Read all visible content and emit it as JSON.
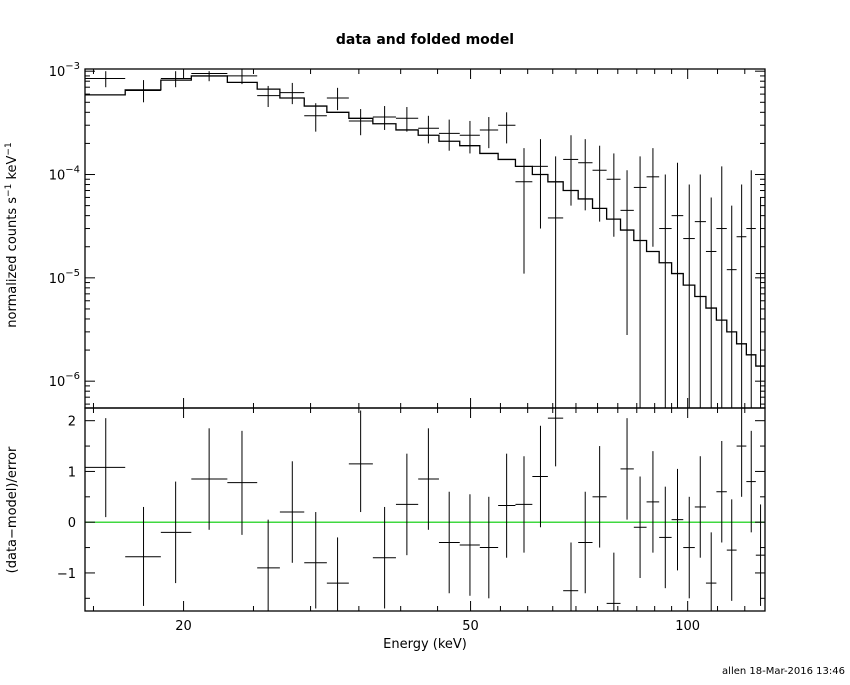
{
  "chart_data": {
    "type": "line",
    "title": "data and folded model",
    "footer": "allen 18-Mar-2016 13:46",
    "xlabel": "Energy (keV)",
    "xscale": "log",
    "xlim": [
      14.6,
      128
    ],
    "xticks": [
      {
        "value": 20,
        "label": "20"
      },
      {
        "value": 50,
        "label": "50"
      },
      {
        "value": 100,
        "label": "100"
      }
    ],
    "panels": [
      {
        "name": "spectrum",
        "ylabel_parts": [
          "normalized counts s",
          "−1",
          " keV",
          "−1"
        ],
        "yscale": "log",
        "ylim": [
          5.5e-07,
          0.00105
        ],
        "yticks": [
          {
            "value": 0.001,
            "base": "10",
            "exp": "−3"
          },
          {
            "value": 0.0001,
            "base": "10",
            "exp": "−4"
          },
          {
            "value": 1e-05,
            "base": "10",
            "exp": "−5"
          },
          {
            "value": 1e-06,
            "base": "10",
            "exp": "−6"
          }
        ],
        "model_step": {
          "edges": [
            14.6,
            16.6,
            18.6,
            20.5,
            23,
            25.3,
            27.2,
            29.4,
            31.6,
            33.9,
            36.6,
            39.4,
            42.3,
            45.2,
            48.3,
            51.5,
            54.6,
            57.7,
            60.9,
            64,
            67.2,
            70.5,
            73.8,
            77.2,
            80.7,
            84.2,
            87.7,
            91.3,
            95,
            98.6,
            102.3,
            106,
            109.6,
            113.3,
            116.9,
            120.6,
            124.3,
            128
          ],
          "values": [
            0.00059,
            0.00066,
            0.00082,
            0.0009,
            0.00078,
            0.00067,
            0.00055,
            0.00046,
            0.0004,
            0.00035,
            0.00031,
            0.00027,
            0.00024,
            0.00021,
            0.00019,
            0.00016,
            0.00014,
            0.00012,
            0.0001,
            8.5e-05,
            7e-05,
            5.8e-05,
            4.7e-05,
            3.7e-05,
            2.9e-05,
            2.3e-05,
            1.8e-05,
            1.4e-05,
            1.1e-05,
            8.5e-06,
            6.6e-06,
            5.1e-06,
            3.9e-06,
            3e-06,
            2.3e-06,
            1.8e-06,
            1.4e-06
          ]
        },
        "data_points": [
          {
            "x": 15.6,
            "xlo": 14.6,
            "xhi": 16.6,
            "y": 0.00085,
            "ylo": 0.0007,
            "yhi": 0.001
          },
          {
            "x": 17.6,
            "xlo": 16.6,
            "xhi": 18.6,
            "y": 0.00065,
            "ylo": 0.0005,
            "yhi": 0.00082
          },
          {
            "x": 19.5,
            "xlo": 18.6,
            "xhi": 20.5,
            "y": 0.00085,
            "ylo": 0.0007,
            "yhi": 0.001
          },
          {
            "x": 21.7,
            "xlo": 20.5,
            "xhi": 23,
            "y": 0.00095,
            "ylo": 0.0008,
            "yhi": 0.001
          },
          {
            "x": 24.1,
            "xlo": 23,
            "xhi": 25.3,
            "y": 0.0009,
            "ylo": 0.00075,
            "yhi": 0.00105
          },
          {
            "x": 26.2,
            "xlo": 25.3,
            "xhi": 27.2,
            "y": 0.00058,
            "ylo": 0.00045,
            "yhi": 0.00072
          },
          {
            "x": 28.3,
            "xlo": 27.2,
            "xhi": 29.4,
            "y": 0.00062,
            "ylo": 0.00048,
            "yhi": 0.00077
          },
          {
            "x": 30.5,
            "xlo": 29.4,
            "xhi": 31.6,
            "y": 0.00037,
            "ylo": 0.00026,
            "yhi": 0.00049
          },
          {
            "x": 32.7,
            "xlo": 31.6,
            "xhi": 33.9,
            "y": 0.00055,
            "ylo": 0.00042,
            "yhi": 0.00069
          },
          {
            "x": 35.2,
            "xlo": 33.9,
            "xhi": 36.6,
            "y": 0.00033,
            "ylo": 0.00024,
            "yhi": 0.00043
          },
          {
            "x": 38,
            "xlo": 36.6,
            "xhi": 39.4,
            "y": 0.00036,
            "ylo": 0.00027,
            "yhi": 0.00046
          },
          {
            "x": 40.8,
            "xlo": 39.4,
            "xhi": 42.3,
            "y": 0.00035,
            "ylo": 0.00026,
            "yhi": 0.00045
          },
          {
            "x": 43.7,
            "xlo": 42.3,
            "xhi": 45.2,
            "y": 0.00028,
            "ylo": 0.0002,
            "yhi": 0.00037
          },
          {
            "x": 46.7,
            "xlo": 45.2,
            "xhi": 48.3,
            "y": 0.00025,
            "ylo": 0.00017,
            "yhi": 0.00034
          },
          {
            "x": 49.9,
            "xlo": 48.3,
            "xhi": 51.5,
            "y": 0.00024,
            "ylo": 0.00016,
            "yhi": 0.00033
          },
          {
            "x": 53,
            "xlo": 51.5,
            "xhi": 54.6,
            "y": 0.00027,
            "ylo": 0.00018,
            "yhi": 0.00036
          },
          {
            "x": 56.1,
            "xlo": 54.6,
            "xhi": 57.7,
            "y": 0.0003,
            "ylo": 0.0002,
            "yhi": 0.0004
          },
          {
            "x": 59.3,
            "xlo": 57.7,
            "xhi": 60.9,
            "y": 8.5e-05,
            "ylo": 1.1e-05,
            "yhi": 0.00018
          },
          {
            "x": 62.5,
            "xlo": 60.9,
            "xhi": 64,
            "y": 0.00012,
            "ylo": 3e-05,
            "yhi": 0.00022
          },
          {
            "x": 65.6,
            "xlo": 64,
            "xhi": 67.2,
            "y": 3.8e-05,
            "ylo": 5.5e-07,
            "yhi": 0.00015
          },
          {
            "x": 68.9,
            "xlo": 67.2,
            "xhi": 70.5,
            "y": 0.00014,
            "ylo": 5e-05,
            "yhi": 0.00024
          },
          {
            "x": 72.1,
            "xlo": 70.5,
            "xhi": 73.8,
            "y": 0.00013,
            "ylo": 4.5e-05,
            "yhi": 0.00022
          },
          {
            "x": 75.5,
            "xlo": 73.8,
            "xhi": 77.2,
            "y": 0.00011,
            "ylo": 3.5e-05,
            "yhi": 0.00019
          },
          {
            "x": 79,
            "xlo": 77.2,
            "xhi": 80.7,
            "y": 9e-05,
            "ylo": 2.5e-05,
            "yhi": 0.00016
          },
          {
            "x": 82.4,
            "xlo": 80.7,
            "xhi": 84.2,
            "y": 4.5e-05,
            "ylo": 2.8e-06,
            "yhi": 0.00011
          },
          {
            "x": 85.9,
            "xlo": 84.2,
            "xhi": 87.7,
            "y": 7.5e-05,
            "ylo": 5.5e-07,
            "yhi": 0.00015
          },
          {
            "x": 89.5,
            "xlo": 87.7,
            "xhi": 91.3,
            "y": 9.5e-05,
            "ylo": 2e-05,
            "yhi": 0.00018
          },
          {
            "x": 93.1,
            "xlo": 91.3,
            "xhi": 95,
            "y": 3e-05,
            "ylo": 5.5e-07,
            "yhi": 0.0001
          },
          {
            "x": 96.8,
            "xlo": 95,
            "xhi": 98.6,
            "y": 4e-05,
            "ylo": 5.5e-07,
            "yhi": 0.00013
          },
          {
            "x": 100.5,
            "xlo": 98.6,
            "xhi": 102.3,
            "y": 2.4e-05,
            "ylo": 5.5e-07,
            "yhi": 8e-05
          },
          {
            "x": 104.1,
            "xlo": 102.3,
            "xhi": 106,
            "y": 3.5e-05,
            "ylo": 5.5e-07,
            "yhi": 0.0001
          },
          {
            "x": 107.8,
            "xlo": 106,
            "xhi": 109.6,
            "y": 1.8e-05,
            "ylo": 5.5e-07,
            "yhi": 6e-05
          },
          {
            "x": 111.5,
            "xlo": 109.6,
            "xhi": 113.3,
            "y": 3e-05,
            "ylo": 5.5e-07,
            "yhi": 0.00012
          },
          {
            "x": 115.1,
            "xlo": 113.3,
            "xhi": 116.9,
            "y": 1.2e-05,
            "ylo": 5.5e-07,
            "yhi": 5e-05
          },
          {
            "x": 118.8,
            "xlo": 116.9,
            "xhi": 120.6,
            "y": 2.5e-05,
            "ylo": 5.5e-07,
            "yhi": 8e-05
          },
          {
            "x": 122.5,
            "xlo": 120.6,
            "xhi": 124.3,
            "y": 3e-05,
            "ylo": 5.5e-07,
            "yhi": 0.00011
          },
          {
            "x": 126.2,
            "xlo": 124.3,
            "xhi": 128,
            "y": 1.1e-05,
            "ylo": 5.5e-07,
            "yhi": 6e-05
          }
        ]
      },
      {
        "name": "residuals",
        "ylabel": "(data−model)/error",
        "yscale": "linear",
        "ylim": [
          -1.75,
          2.25
        ],
        "yticks": [
          {
            "value": 2,
            "label": "2"
          },
          {
            "value": 1,
            "label": "1"
          },
          {
            "value": 0,
            "label": "0"
          },
          {
            "value": -1,
            "label": "−1"
          }
        ],
        "reference_line": {
          "y": 0,
          "color": "#00cc00"
        },
        "data_points": [
          {
            "x": 15.6,
            "xlo": 14.6,
            "xhi": 16.6,
            "y": 1.08,
            "ylo": 0.1,
            "yhi": 2.05
          },
          {
            "x": 17.6,
            "xlo": 16.6,
            "xhi": 18.6,
            "y": -0.68,
            "ylo": -1.65,
            "yhi": 0.3
          },
          {
            "x": 19.5,
            "xlo": 18.6,
            "xhi": 20.5,
            "y": -0.2,
            "ylo": -1.2,
            "yhi": 0.8
          },
          {
            "x": 21.7,
            "xlo": 20.5,
            "xhi": 23,
            "y": 0.85,
            "ylo": -0.15,
            "yhi": 1.85
          },
          {
            "x": 24.1,
            "xlo": 23,
            "xhi": 25.3,
            "y": 0.78,
            "ylo": -0.25,
            "yhi": 1.8
          },
          {
            "x": 26.2,
            "xlo": 25.3,
            "xhi": 27.2,
            "y": -0.9,
            "ylo": -1.75,
            "yhi": 0.05
          },
          {
            "x": 28.3,
            "xlo": 27.2,
            "xhi": 29.4,
            "y": 0.2,
            "ylo": -0.8,
            "yhi": 1.2
          },
          {
            "x": 30.5,
            "xlo": 29.4,
            "xhi": 31.6,
            "y": -0.8,
            "ylo": -1.7,
            "yhi": 0.2
          },
          {
            "x": 32.7,
            "xlo": 31.6,
            "xhi": 33.9,
            "y": -1.2,
            "ylo": -1.75,
            "yhi": -0.3
          },
          {
            "x": 35.2,
            "xlo": 33.9,
            "xhi": 36.6,
            "y": 1.15,
            "ylo": 0.2,
            "yhi": 2.2
          },
          {
            "x": 38,
            "xlo": 36.6,
            "xhi": 39.4,
            "y": -0.7,
            "ylo": -1.7,
            "yhi": 0.3
          },
          {
            "x": 40.8,
            "xlo": 39.4,
            "xhi": 42.3,
            "y": 0.35,
            "ylo": -0.65,
            "yhi": 1.35
          },
          {
            "x": 43.7,
            "xlo": 42.3,
            "xhi": 45.2,
            "y": 0.85,
            "ylo": -0.15,
            "yhi": 1.85
          },
          {
            "x": 46.7,
            "xlo": 45.2,
            "xhi": 48.3,
            "y": -0.4,
            "ylo": -1.4,
            "yhi": 0.6
          },
          {
            "x": 49.9,
            "xlo": 48.3,
            "xhi": 51.5,
            "y": -0.45,
            "ylo": -1.45,
            "yhi": 0.55
          },
          {
            "x": 53,
            "xlo": 51.5,
            "xhi": 54.6,
            "y": -0.5,
            "ylo": -1.5,
            "yhi": 0.5
          },
          {
            "x": 56.1,
            "xlo": 54.6,
            "xhi": 57.7,
            "y": 0.33,
            "ylo": -0.7,
            "yhi": 1.35
          },
          {
            "x": 59.3,
            "xlo": 57.7,
            "xhi": 60.9,
            "y": 0.35,
            "ylo": -0.6,
            "yhi": 1.3
          },
          {
            "x": 62.5,
            "xlo": 60.9,
            "xhi": 64,
            "y": 0.9,
            "ylo": -0.1,
            "yhi": 1.9
          },
          {
            "x": 65.6,
            "xlo": 64,
            "xhi": 67.2,
            "y": 2.05,
            "ylo": 1.1,
            "yhi": 2.25
          },
          {
            "x": 68.9,
            "xlo": 67.2,
            "xhi": 70.5,
            "y": -1.35,
            "ylo": -1.75,
            "yhi": -0.4
          },
          {
            "x": 72.1,
            "xlo": 70.5,
            "xhi": 73.8,
            "y": -0.4,
            "ylo": -1.4,
            "yhi": 0.6
          },
          {
            "x": 75.5,
            "xlo": 73.8,
            "xhi": 77.2,
            "y": 0.5,
            "ylo": -0.5,
            "yhi": 1.5
          },
          {
            "x": 79,
            "xlo": 77.2,
            "xhi": 80.7,
            "y": -1.6,
            "ylo": -1.75,
            "yhi": -0.6
          },
          {
            "x": 82.4,
            "xlo": 80.7,
            "xhi": 84.2,
            "y": 1.05,
            "ylo": 0.05,
            "yhi": 2.05
          },
          {
            "x": 85.9,
            "xlo": 84.2,
            "xhi": 87.7,
            "y": -0.1,
            "ylo": -1.1,
            "yhi": 0.9
          },
          {
            "x": 89.5,
            "xlo": 87.7,
            "xhi": 91.3,
            "y": 0.4,
            "ylo": -0.6,
            "yhi": 1.4
          },
          {
            "x": 93.1,
            "xlo": 91.3,
            "xhi": 95,
            "y": -0.3,
            "ylo": -1.3,
            "yhi": 0.7
          },
          {
            "x": 96.8,
            "xlo": 95,
            "xhi": 98.6,
            "y": 0.05,
            "ylo": -0.95,
            "yhi": 1.05
          },
          {
            "x": 100.5,
            "xlo": 98.6,
            "xhi": 102.3,
            "y": -0.5,
            "ylo": -1.5,
            "yhi": 0.5
          },
          {
            "x": 104.1,
            "xlo": 102.3,
            "xhi": 106,
            "y": 0.3,
            "ylo": -0.7,
            "yhi": 1.3
          },
          {
            "x": 107.8,
            "xlo": 106,
            "xhi": 109.6,
            "y": -1.2,
            "ylo": -1.75,
            "yhi": -0.2
          },
          {
            "x": 111.5,
            "xlo": 109.6,
            "xhi": 113.3,
            "y": 0.6,
            "ylo": -0.4,
            "yhi": 1.6
          },
          {
            "x": 115.1,
            "xlo": 113.3,
            "xhi": 116.9,
            "y": -0.55,
            "ylo": -1.55,
            "yhi": 0.45
          },
          {
            "x": 118.8,
            "xlo": 116.9,
            "xhi": 120.6,
            "y": 1.5,
            "ylo": 0.5,
            "yhi": 2.25
          },
          {
            "x": 122.5,
            "xlo": 120.6,
            "xhi": 124.3,
            "y": 0.8,
            "ylo": -0.2,
            "yhi": 1.8
          },
          {
            "x": 126.2,
            "xlo": 124.3,
            "xhi": 128,
            "y": -0.65,
            "ylo": -1.65,
            "yhi": 0.35
          }
        ]
      }
    ]
  }
}
